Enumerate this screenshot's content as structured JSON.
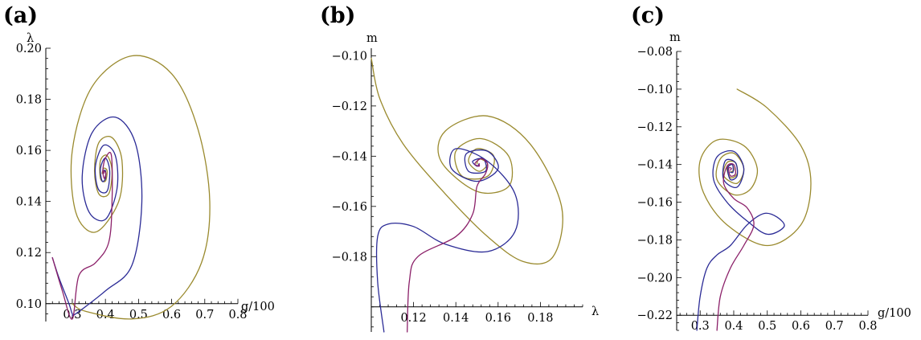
{
  "colors": {
    "navy": "#2b2b96",
    "purple": "#8b2069",
    "olive": "#9a8a2e"
  },
  "chart_data": [
    {
      "panel": "(a)",
      "type": "line",
      "xlabel": "g/100",
      "ylabel": "λ",
      "xlim": [
        0.22,
        0.8
      ],
      "ylim": [
        0.093,
        0.2
      ],
      "x_axis_at_y": 0.1,
      "y_axis_at_x": 0.22,
      "xticks": [
        0.3,
        0.4,
        0.5,
        0.6,
        0.7,
        0.8
      ],
      "xtick_labels": [
        "0.3",
        "0.4",
        "0.5",
        "0.6",
        "0.7",
        "0.8"
      ],
      "yticks": [
        0.1,
        0.12,
        0.14,
        0.16,
        0.18,
        0.2
      ],
      "ytick_labels": [
        "0.10",
        "0.12",
        "0.14",
        "0.16",
        "0.18",
        "0.20"
      ],
      "fixed_point": [
        0.395,
        0.151
      ],
      "series": [
        {
          "color": "olive",
          "points": [
            [
              0.3,
              0.1
            ],
            [
              0.34,
              0.097
            ],
            [
              0.48,
              0.094
            ],
            [
              0.6,
              0.099
            ],
            [
              0.69,
              0.116
            ],
            [
              0.715,
              0.14
            ],
            [
              0.68,
              0.168
            ],
            [
              0.6,
              0.19
            ],
            [
              0.48,
              0.197
            ],
            [
              0.36,
              0.185
            ],
            [
              0.3,
              0.16
            ],
            [
              0.31,
              0.136
            ],
            [
              0.37,
              0.128
            ],
            [
              0.44,
              0.14
            ],
            [
              0.45,
              0.156
            ],
            [
              0.42,
              0.165
            ],
            [
              0.38,
              0.163
            ],
            [
              0.367,
              0.152
            ],
            [
              0.38,
              0.143
            ],
            [
              0.41,
              0.143
            ],
            [
              0.42,
              0.152
            ],
            [
              0.405,
              0.158
            ],
            [
              0.385,
              0.156
            ],
            [
              0.385,
              0.149
            ],
            [
              0.4,
              0.148
            ],
            [
              0.405,
              0.152
            ],
            [
              0.395,
              0.153
            ],
            [
              0.39,
              0.151
            ]
          ]
        },
        {
          "color": "navy",
          "points": [
            [
              0.24,
              0.118
            ],
            [
              0.26,
              0.11
            ],
            [
              0.29,
              0.1
            ],
            [
              0.3,
              0.096
            ],
            [
              0.31,
              0.096
            ],
            [
              0.4,
              0.105
            ],
            [
              0.48,
              0.115
            ],
            [
              0.51,
              0.14
            ],
            [
              0.49,
              0.163
            ],
            [
              0.43,
              0.173
            ],
            [
              0.36,
              0.167
            ],
            [
              0.33,
              0.15
            ],
            [
              0.35,
              0.136
            ],
            [
              0.4,
              0.133
            ],
            [
              0.435,
              0.145
            ],
            [
              0.43,
              0.158
            ],
            [
              0.395,
              0.162
            ],
            [
              0.37,
              0.154
            ],
            [
              0.378,
              0.145
            ],
            [
              0.405,
              0.144
            ],
            [
              0.413,
              0.152
            ],
            [
              0.4,
              0.157
            ],
            [
              0.385,
              0.153
            ],
            [
              0.39,
              0.148
            ],
            [
              0.4,
              0.149
            ],
            [
              0.4,
              0.152
            ],
            [
              0.394,
              0.152
            ]
          ]
        },
        {
          "color": "purple",
          "points": [
            [
              0.24,
              0.118
            ],
            [
              0.27,
              0.105
            ],
            [
              0.3,
              0.094
            ],
            [
              0.32,
              0.111
            ],
            [
              0.37,
              0.116
            ],
            [
              0.41,
              0.124
            ],
            [
              0.42,
              0.14
            ],
            [
              0.418,
              0.158
            ],
            [
              0.4,
              0.157
            ],
            [
              0.392,
              0.152
            ],
            [
              0.397,
              0.149
            ],
            [
              0.401,
              0.151
            ],
            [
              0.396,
              0.152
            ],
            [
              0.395,
              0.151
            ]
          ]
        }
      ]
    },
    {
      "panel": "(b)",
      "type": "line",
      "xlabel": "λ",
      "ylabel": "m",
      "xlim": [
        0.1,
        0.2
      ],
      "ylim": [
        -0.21,
        -0.097
      ],
      "x_axis_at_y": -0.2,
      "y_axis_at_x": 0.1,
      "xticks": [
        0.12,
        0.14,
        0.16,
        0.18
      ],
      "xtick_labels": [
        "0.12",
        "0.14",
        "0.16",
        "0.18"
      ],
      "yticks": [
        -0.18,
        -0.16,
        -0.14,
        -0.12,
        -0.1
      ],
      "ytick_labels": [
        "−0.18",
        "−0.16",
        "−0.14",
        "−0.12",
        "−0.10"
      ],
      "fixed_point": [
        0.151,
        -0.143
      ],
      "series": [
        {
          "color": "olive",
          "points": [
            [
              0.1,
              -0.101
            ],
            [
              0.104,
              -0.117
            ],
            [
              0.115,
              -0.135
            ],
            [
              0.135,
              -0.155
            ],
            [
              0.155,
              -0.172
            ],
            [
              0.172,
              -0.182
            ],
            [
              0.186,
              -0.18
            ],
            [
              0.19,
              -0.16
            ],
            [
              0.175,
              -0.135
            ],
            [
              0.155,
              -0.124
            ],
            [
              0.135,
              -0.13
            ],
            [
              0.133,
              -0.142
            ],
            [
              0.15,
              -0.154
            ],
            [
              0.165,
              -0.152
            ],
            [
              0.165,
              -0.14
            ],
            [
              0.152,
              -0.133
            ],
            [
              0.14,
              -0.138
            ],
            [
              0.143,
              -0.148
            ],
            [
              0.155,
              -0.148
            ],
            [
              0.158,
              -0.14
            ],
            [
              0.15,
              -0.137
            ],
            [
              0.146,
              -0.142
            ],
            [
              0.151,
              -0.146
            ],
            [
              0.155,
              -0.143
            ],
            [
              0.151,
              -0.141
            ],
            [
              0.15,
              -0.143
            ]
          ]
        },
        {
          "color": "navy",
          "points": [
            [
              0.106,
              -0.21
            ],
            [
              0.103,
              -0.19
            ],
            [
              0.103,
              -0.172
            ],
            [
              0.108,
              -0.167
            ],
            [
              0.12,
              -0.168
            ],
            [
              0.135,
              -0.175
            ],
            [
              0.155,
              -0.178
            ],
            [
              0.168,
              -0.17
            ],
            [
              0.168,
              -0.155
            ],
            [
              0.155,
              -0.142
            ],
            [
              0.14,
              -0.137
            ],
            [
              0.138,
              -0.145
            ],
            [
              0.15,
              -0.15
            ],
            [
              0.16,
              -0.145
            ],
            [
              0.155,
              -0.138
            ],
            [
              0.145,
              -0.139
            ],
            [
              0.146,
              -0.146
            ],
            [
              0.154,
              -0.146
            ],
            [
              0.153,
              -0.141
            ],
            [
              0.148,
              -0.142
            ],
            [
              0.15,
              -0.144
            ],
            [
              0.151,
              -0.143
            ]
          ]
        },
        {
          "color": "purple",
          "points": [
            [
              0.117,
              -0.21
            ],
            [
              0.118,
              -0.19
            ],
            [
              0.122,
              -0.18
            ],
            [
              0.14,
              -0.172
            ],
            [
              0.148,
              -0.163
            ],
            [
              0.15,
              -0.152
            ],
            [
              0.154,
              -0.147
            ],
            [
              0.155,
              -0.143
            ],
            [
              0.152,
              -0.141
            ],
            [
              0.149,
              -0.143
            ],
            [
              0.151,
              -0.144
            ],
            [
              0.151,
              -0.143
            ]
          ]
        }
      ]
    },
    {
      "panel": "(c)",
      "type": "line",
      "xlabel": "g/100",
      "ylabel": "m",
      "xlim": [
        0.23,
        0.8
      ],
      "ylim": [
        -0.228,
        -0.08
      ],
      "x_axis_at_y": -0.22,
      "y_axis_at_x": 0.23,
      "xticks": [
        0.3,
        0.4,
        0.5,
        0.6,
        0.7,
        0.8
      ],
      "xtick_labels": [
        "0.3",
        "0.4",
        "0.5",
        "0.6",
        "0.7",
        "0.8"
      ],
      "yticks": [
        -0.22,
        -0.2,
        -0.18,
        -0.16,
        -0.14,
        -0.12,
        -0.1,
        -0.08
      ],
      "ytick_labels": [
        "−0.22",
        "−0.20",
        "−0.18",
        "−0.16",
        "−0.14",
        "−0.12",
        "−0.10",
        "−0.08"
      ],
      "fixed_point": [
        0.39,
        -0.143
      ],
      "series": [
        {
          "color": "olive",
          "points": [
            [
              0.41,
              -0.1
            ],
            [
              0.5,
              -0.11
            ],
            [
              0.6,
              -0.13
            ],
            [
              0.63,
              -0.15
            ],
            [
              0.6,
              -0.172
            ],
            [
              0.5,
              -0.183
            ],
            [
              0.38,
              -0.172
            ],
            [
              0.31,
              -0.155
            ],
            [
              0.3,
              -0.138
            ],
            [
              0.35,
              -0.127
            ],
            [
              0.43,
              -0.13
            ],
            [
              0.47,
              -0.142
            ],
            [
              0.45,
              -0.153
            ],
            [
              0.4,
              -0.156
            ],
            [
              0.35,
              -0.148
            ],
            [
              0.36,
              -0.137
            ],
            [
              0.4,
              -0.134
            ],
            [
              0.43,
              -0.142
            ],
            [
              0.41,
              -0.15
            ],
            [
              0.37,
              -0.146
            ],
            [
              0.38,
              -0.139
            ],
            [
              0.405,
              -0.139
            ],
            [
              0.41,
              -0.145
            ],
            [
              0.39,
              -0.147
            ],
            [
              0.38,
              -0.142
            ],
            [
              0.395,
              -0.14
            ],
            [
              0.4,
              -0.143
            ],
            [
              0.39,
              -0.144
            ]
          ]
        },
        {
          "color": "navy",
          "points": [
            [
              0.29,
              -0.228
            ],
            [
              0.3,
              -0.21
            ],
            [
              0.32,
              -0.195
            ],
            [
              0.35,
              -0.188
            ],
            [
              0.39,
              -0.183
            ],
            [
              0.44,
              -0.172
            ],
            [
              0.49,
              -0.166
            ],
            [
              0.53,
              -0.168
            ],
            [
              0.55,
              -0.173
            ],
            [
              0.5,
              -0.177
            ],
            [
              0.44,
              -0.17
            ],
            [
              0.38,
              -0.16
            ],
            [
              0.34,
              -0.148
            ],
            [
              0.35,
              -0.136
            ],
            [
              0.4,
              -0.133
            ],
            [
              0.43,
              -0.142
            ],
            [
              0.41,
              -0.152
            ],
            [
              0.37,
              -0.148
            ],
            [
              0.375,
              -0.138
            ],
            [
              0.405,
              -0.139
            ],
            [
              0.41,
              -0.146
            ],
            [
              0.39,
              -0.148
            ],
            [
              0.382,
              -0.142
            ],
            [
              0.396,
              -0.14
            ],
            [
              0.398,
              -0.144
            ],
            [
              0.39,
              -0.144
            ]
          ]
        },
        {
          "color": "purple",
          "points": [
            [
              0.35,
              -0.228
            ],
            [
              0.36,
              -0.21
            ],
            [
              0.39,
              -0.195
            ],
            [
              0.43,
              -0.183
            ],
            [
              0.46,
              -0.172
            ],
            [
              0.44,
              -0.163
            ],
            [
              0.4,
              -0.158
            ],
            [
              0.37,
              -0.15
            ],
            [
              0.38,
              -0.141
            ],
            [
              0.4,
              -0.14
            ],
            [
              0.405,
              -0.145
            ],
            [
              0.39,
              -0.146
            ],
            [
              0.385,
              -0.142
            ],
            [
              0.393,
              -0.142
            ],
            [
              0.39,
              -0.143
            ]
          ]
        }
      ]
    }
  ]
}
